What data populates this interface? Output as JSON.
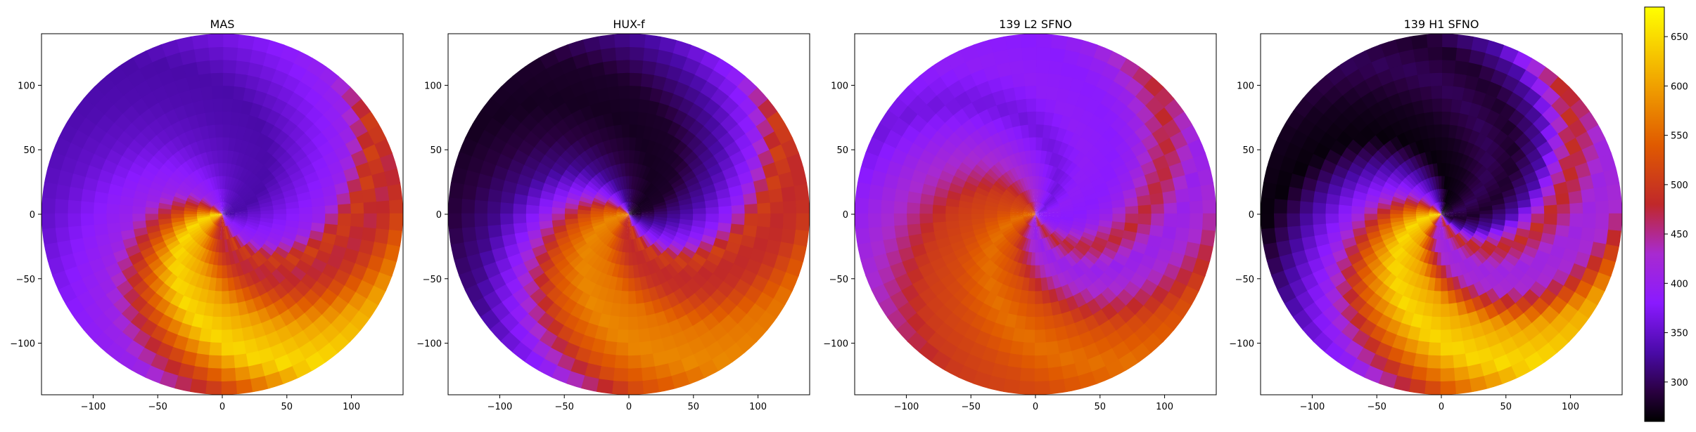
{
  "chart_data": [
    {
      "type": "heatmap",
      "title": "MAS",
      "xlim": [
        -140,
        140
      ],
      "ylim": [
        -140,
        140
      ],
      "x_ticks": [
        -100,
        -50,
        0,
        50,
        100
      ],
      "y_ticks": [
        -100,
        -50,
        0,
        50,
        100
      ],
      "x_tick_labels": [
        "−100",
        "−50",
        "0",
        "50",
        "100"
      ],
      "y_tick_labels": [
        "−100",
        "−50",
        "0",
        "50",
        "100"
      ],
      "disk_radius": 140,
      "spiral_twist_deg_per_unit_r": 0.9,
      "value_by_angle": [
        {
          "deg": 0,
          "v": 330
        },
        {
          "deg": 30,
          "v": 335
        },
        {
          "deg": 60,
          "v": 350
        },
        {
          "deg": 90,
          "v": 380
        },
        {
          "deg": 120,
          "v": 405
        },
        {
          "deg": 150,
          "v": 520
        },
        {
          "deg": 180,
          "v": 650
        },
        {
          "deg": 210,
          "v": 600
        },
        {
          "deg": 240,
          "v": 500
        },
        {
          "deg": 255,
          "v": 470
        },
        {
          "deg": 270,
          "v": 510
        },
        {
          "deg": 290,
          "v": 400
        },
        {
          "deg": 320,
          "v": 370
        },
        {
          "deg": 360,
          "v": 330
        }
      ]
    },
    {
      "type": "heatmap",
      "title": "HUX-f",
      "xlim": [
        -140,
        140
      ],
      "ylim": [
        -140,
        140
      ],
      "x_ticks": [
        -100,
        -50,
        0,
        50,
        100
      ],
      "y_ticks": [
        -100,
        -50,
        0,
        50,
        100
      ],
      "x_tick_labels": [
        "−100",
        "−50",
        "0",
        "50",
        "100"
      ],
      "y_tick_labels": [
        "−100",
        "−50",
        "0",
        "50",
        "100"
      ],
      "disk_radius": 140,
      "spiral_twist_deg_per_unit_r": 0.9,
      "value_by_angle": [
        {
          "deg": 0,
          "v": 280
        },
        {
          "deg": 30,
          "v": 275
        },
        {
          "deg": 60,
          "v": 290
        },
        {
          "deg": 90,
          "v": 320
        },
        {
          "deg": 120,
          "v": 390
        },
        {
          "deg": 150,
          "v": 520
        },
        {
          "deg": 180,
          "v": 580
        },
        {
          "deg": 210,
          "v": 560
        },
        {
          "deg": 240,
          "v": 490
        },
        {
          "deg": 255,
          "v": 480
        },
        {
          "deg": 270,
          "v": 510
        },
        {
          "deg": 290,
          "v": 390
        },
        {
          "deg": 320,
          "v": 330
        },
        {
          "deg": 360,
          "v": 280
        }
      ]
    },
    {
      "type": "heatmap",
      "title": "139 L2 SFNO",
      "xlim": [
        -140,
        140
      ],
      "ylim": [
        -140,
        140
      ],
      "x_ticks": [
        -100,
        -50,
        0,
        50,
        100
      ],
      "y_ticks": [
        -100,
        -50,
        0,
        50,
        100
      ],
      "x_tick_labels": [
        "−100",
        "−50",
        "0",
        "50",
        "100"
      ],
      "y_tick_labels": [
        "−100",
        "−50",
        "0",
        "50",
        "100"
      ],
      "disk_radius": 140,
      "spiral_twist_deg_per_unit_r": 0.9,
      "value_by_angle": [
        {
          "deg": 0,
          "v": 390
        },
        {
          "deg": 30,
          "v": 360
        },
        {
          "deg": 60,
          "v": 400
        },
        {
          "deg": 90,
          "v": 440
        },
        {
          "deg": 120,
          "v": 500
        },
        {
          "deg": 150,
          "v": 520
        },
        {
          "deg": 180,
          "v": 560
        },
        {
          "deg": 210,
          "v": 520
        },
        {
          "deg": 240,
          "v": 430
        },
        {
          "deg": 260,
          "v": 400
        },
        {
          "deg": 285,
          "v": 480
        },
        {
          "deg": 310,
          "v": 400
        },
        {
          "deg": 330,
          "v": 380
        },
        {
          "deg": 360,
          "v": 390
        }
      ]
    },
    {
      "type": "heatmap",
      "title": "139 H1 SFNO",
      "xlim": [
        -140,
        140
      ],
      "ylim": [
        -140,
        140
      ],
      "x_ticks": [
        -100,
        -50,
        0,
        50,
        100
      ],
      "y_ticks": [
        -100,
        -50,
        0,
        50,
        100
      ],
      "x_tick_labels": [
        "−100",
        "−50",
        "0",
        "50",
        "100"
      ],
      "y_tick_labels": [
        "−100",
        "−50",
        "0",
        "50",
        "100"
      ],
      "disk_radius": 140,
      "spiral_twist_deg_per_unit_r": 0.9,
      "value_by_angle": [
        {
          "deg": 0,
          "v": 300
        },
        {
          "deg": 30,
          "v": 275
        },
        {
          "deg": 60,
          "v": 265
        },
        {
          "deg": 90,
          "v": 330
        },
        {
          "deg": 120,
          "v": 400
        },
        {
          "deg": 150,
          "v": 540
        },
        {
          "deg": 180,
          "v": 650
        },
        {
          "deg": 210,
          "v": 600
        },
        {
          "deg": 240,
          "v": 430
        },
        {
          "deg": 260,
          "v": 410
        },
        {
          "deg": 285,
          "v": 490
        },
        {
          "deg": 310,
          "v": 330
        },
        {
          "deg": 335,
          "v": 280
        },
        {
          "deg": 360,
          "v": 300
        }
      ]
    }
  ],
  "colorbar": {
    "vmin": 260,
    "vmax": 680,
    "ticks": [
      300,
      350,
      400,
      450,
      500,
      550,
      600,
      650
    ],
    "tick_labels": [
      "300",
      "350",
      "400",
      "450",
      "500",
      "550",
      "600",
      "650"
    ],
    "colormap_stops": [
      {
        "v": 260,
        "color": "#000000"
      },
      {
        "v": 290,
        "color": "#2a0040"
      },
      {
        "v": 330,
        "color": "#4a0aa8"
      },
      {
        "v": 380,
        "color": "#8a1aff"
      },
      {
        "v": 430,
        "color": "#a82ad0"
      },
      {
        "v": 480,
        "color": "#c0282a"
      },
      {
        "v": 540,
        "color": "#e05a00"
      },
      {
        "v": 600,
        "color": "#f0a000"
      },
      {
        "v": 680,
        "color": "#ffff00"
      }
    ]
  }
}
